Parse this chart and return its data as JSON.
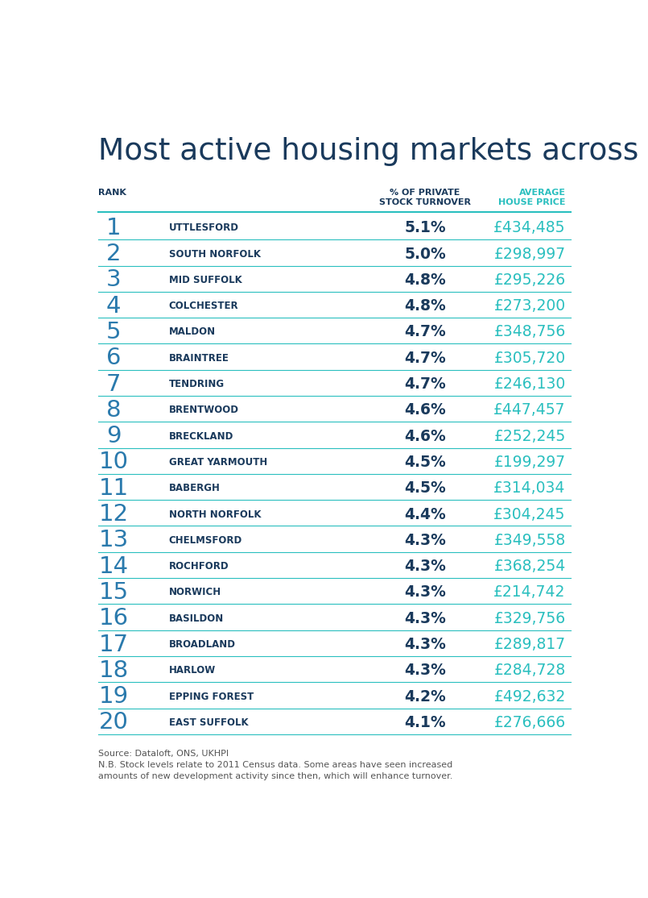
{
  "title": "Most active housing markets across the region",
  "title_color": "#1a3a5c",
  "col_header_rank": "RANK",
  "col_header_turnover": "% OF PRIVATE\nSTOCK TURNOVER",
  "col_header_price": "AVERAGE\nHOUSE PRICE",
  "header_rank_color": "#1a3a5c",
  "header_turnover_color": "#1a3a5c",
  "header_price_color": "#2abfbf",
  "ranks": [
    1,
    2,
    3,
    4,
    5,
    6,
    7,
    8,
    9,
    10,
    11,
    12,
    13,
    14,
    15,
    16,
    17,
    18,
    19,
    20
  ],
  "areas": [
    "UTTLESFORD",
    "SOUTH NORFOLK",
    "MID SUFFOLK",
    "COLCHESTER",
    "MALDON",
    "BRAINTREE",
    "TENDRING",
    "BRENTWOOD",
    "BRECKLAND",
    "GREAT YARMOUTH",
    "BABERGH",
    "NORTH NORFOLK",
    "CHELMSFORD",
    "ROCHFORD",
    "NORWICH",
    "BASILDON",
    "BROADLAND",
    "HARLOW",
    "EPPING FOREST",
    "EAST SUFFOLK"
  ],
  "turnover": [
    "5.1%",
    "5.0%",
    "4.8%",
    "4.8%",
    "4.7%",
    "4.7%",
    "4.7%",
    "4.6%",
    "4.6%",
    "4.5%",
    "4.5%",
    "4.4%",
    "4.3%",
    "4.3%",
    "4.3%",
    "4.3%",
    "4.3%",
    "4.3%",
    "4.2%",
    "4.1%"
  ],
  "prices": [
    "£434,485",
    "£298,997",
    "£295,226",
    "£273,200",
    "£348,756",
    "£305,720",
    "£246,130",
    "£447,457",
    "£252,245",
    "£199,297",
    "£314,034",
    "£304,245",
    "£349,558",
    "£368,254",
    "£214,742",
    "£329,756",
    "£289,817",
    "£284,728",
    "£492,632",
    "£276,666"
  ],
  "rank_color": "#2a7aad",
  "area_color": "#1a3a5c",
  "turnover_color": "#1a3a5c",
  "price_color": "#2abfbf",
  "divider_color": "#2abfbf",
  "background_color": "#ffffff",
  "footnote": "Source: Dataloft, ONS, UKHPI\nN.B. Stock levels relate to 2011 Census data. Some areas have seen increased\namounts of new development activity since then, which will enhance turnover.",
  "footnote_color": "#555555"
}
